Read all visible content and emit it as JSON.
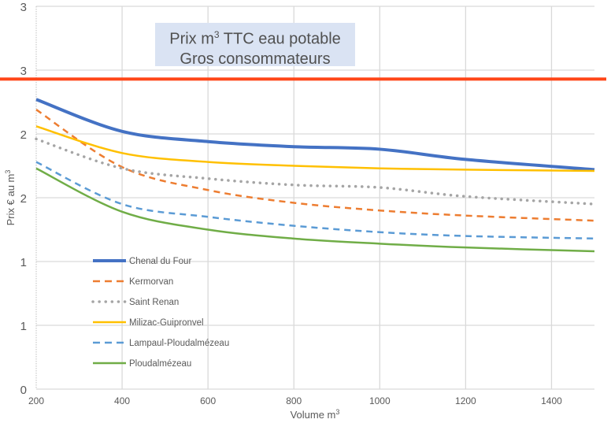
{
  "chart_data": {
    "type": "line",
    "title_line1_prefix": "Prix m",
    "title_sup": "3",
    "title_line1_suffix": " TTC eau potable",
    "title_line2": "Gros consommateurs",
    "title": "Prix m³ TTC eau potable Gros consommateurs",
    "xlabel": "Volume m³",
    "xlabel_prefix": "Volume m",
    "xlabel_sup": "3",
    "ylabel": "Prix € au m³",
    "ylabel_prefix": "Prix € au m",
    "ylabel_sup": "3",
    "xlim": [
      200,
      1500
    ],
    "ylim": [
      0,
      3
    ],
    "x_ticks": [
      200,
      400,
      600,
      800,
      1000,
      1200,
      1400
    ],
    "x_tick_labels": [
      "200",
      "400",
      "600",
      "800",
      "1000",
      "1200",
      "1400"
    ],
    "y_ticks": [
      0,
      0.5,
      1,
      1.5,
      2,
      2.5,
      3
    ],
    "y_tick_labels": [
      "0",
      "1",
      "1",
      "2",
      "2",
      "3",
      "3"
    ],
    "grid": true,
    "legend_position": "left-bottom",
    "reference_line": {
      "value": 2.43,
      "color": "#ff4517"
    },
    "x": [
      200,
      400,
      600,
      800,
      1000,
      1200,
      1500
    ],
    "series": [
      {
        "name": "Chenal du Four",
        "color": "#4472c4",
        "style": "solid",
        "width": 4,
        "values": [
          2.27,
          2.02,
          1.94,
          1.9,
          1.88,
          1.8,
          1.72
        ]
      },
      {
        "name": "Kermorvan",
        "color": "#ed7d31",
        "style": "dashed",
        "width": 2.5,
        "values": [
          2.19,
          1.74,
          1.56,
          1.46,
          1.4,
          1.36,
          1.32
        ]
      },
      {
        "name": "Saint Renan",
        "color": "#a5a5a5",
        "style": "dotted",
        "width": 3.5,
        "values": [
          1.96,
          1.73,
          1.65,
          1.6,
          1.58,
          1.51,
          1.45
        ]
      },
      {
        "name": "Milizac-Guipronvel",
        "color": "#ffc000",
        "style": "solid",
        "width": 2.5,
        "values": [
          2.06,
          1.85,
          1.78,
          1.75,
          1.73,
          1.72,
          1.71
        ]
      },
      {
        "name": "Lampaul-Ploudalmézeau",
        "color": "#5b9bd5",
        "style": "dashed",
        "width": 2.5,
        "values": [
          1.78,
          1.45,
          1.35,
          1.28,
          1.23,
          1.2,
          1.18
        ]
      },
      {
        "name": "Ploudalmézeau",
        "color": "#70ad47",
        "style": "solid",
        "width": 2.5,
        "values": [
          1.73,
          1.39,
          1.25,
          1.18,
          1.14,
          1.11,
          1.08
        ]
      }
    ]
  }
}
